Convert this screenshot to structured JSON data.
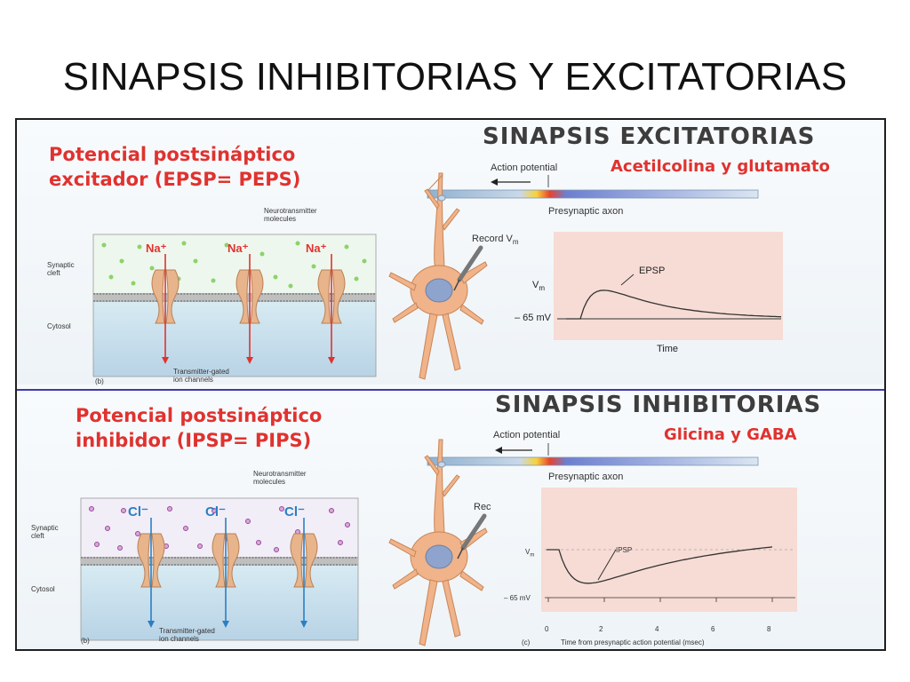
{
  "slide": {
    "title": "SINAPSIS INHIBITORIAS Y EXCITATORIAS"
  },
  "excitatory": {
    "panel_title_line1": "Potencial postsináptico",
    "panel_title_line2": "excitador (EPSP= PEPS)",
    "heading": "SINAPSIS EXCITATORIAS",
    "transmitters": "Acetilcolina y glutamato",
    "action_potential": "Action potential",
    "presynaptic_axon": "Presynaptic axon",
    "record": "Record V",
    "record_sub": "m",
    "vm": "V",
    "vm_sub": "m",
    "curve_label": "EPSP",
    "resting": "– 65 mV",
    "time_label": "Time",
    "neurotransmitter_line1": "Neurotransmitter",
    "neurotransmitter_line2": "molecules",
    "synaptic_line1": "Synaptic",
    "synaptic_line2": "cleft",
    "cytosol": "Cytosol",
    "channels_line1": "Transmitter-gated",
    "channels_line2": "ion channels",
    "panel_letter": "(b)",
    "ion_label": "Na⁺",
    "ion_color": "#e0322f"
  },
  "inhibitory": {
    "panel_title_line1": "Potencial postsináptico",
    "panel_title_line2": "inhibidor (IPSP= PIPS)",
    "heading": "SINAPSIS INHIBITORIAS",
    "transmitters": "Glicina y GABA",
    "action_potential": "Action potential",
    "presynaptic_axon": "Presynaptic axon",
    "record": "Rec",
    "vm": "V",
    "vm_sub": "m",
    "curve_label": "IPSP",
    "resting": "– 65 mV",
    "x_ticks": [
      "0",
      "2",
      "4",
      "6",
      "8"
    ],
    "x_axis_label": "Time from presynaptic action potential (msec)",
    "neurotransmitter_line1": "Neurotransmitter",
    "neurotransmitter_line2": "molecules",
    "synaptic_line1": "Synaptic",
    "synaptic_line2": "cleft",
    "cytosol": "Cytosol",
    "channels_line1": "Transmitter-gated",
    "channels_line2": "ion channels",
    "panel_letter": "(b)",
    "graph_letter": "(c)",
    "ion_label": "Cl⁻",
    "ion_color": "#2a7fc4"
  },
  "colors": {
    "accent_red": "#e0322f",
    "divider_blue": "#3b3bb0",
    "graph_bg": "#f6dcd4",
    "neuron": "#f0b38a",
    "channel": "#e8b48c"
  }
}
